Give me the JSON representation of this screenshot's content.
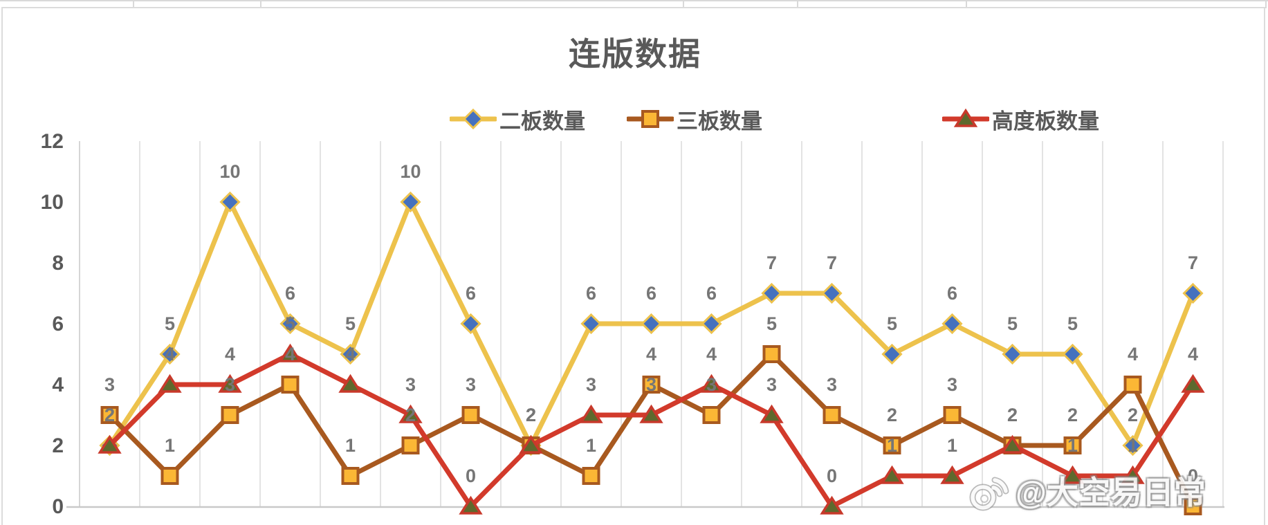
{
  "chart_data": {
    "type": "line",
    "title": "连版数据",
    "ylim": [
      0,
      12
    ],
    "yticks": [
      12,
      10,
      8,
      6,
      4,
      2,
      0
    ],
    "x_points": 19,
    "x_axis_labels_visible": false,
    "grid": "vertical-only",
    "legend_position": "top",
    "data_labels": "above-points",
    "series": [
      {
        "name": "二板数量",
        "marker": "diamond",
        "line_color": "#EDC24C",
        "marker_fill": "#4571BE",
        "values": [
          2,
          5,
          10,
          6,
          5,
          10,
          6,
          2,
          6,
          6,
          6,
          7,
          7,
          5,
          6,
          5,
          5,
          2,
          7
        ]
      },
      {
        "name": "三板数量",
        "marker": "square",
        "line_color": "#A8591F",
        "marker_fill": "#FBB735",
        "values": [
          3,
          1,
          3,
          4,
          1,
          2,
          3,
          2,
          1,
          4,
          3,
          5,
          3,
          2,
          3,
          2,
          2,
          4,
          0
        ]
      },
      {
        "name": "高度板数量",
        "marker": "triangle",
        "line_color": "#D23A2B",
        "marker_fill": "#5E692D",
        "values": [
          2,
          4,
          4,
          5,
          4,
          3,
          0,
          2,
          3,
          3,
          4,
          3,
          0,
          1,
          1,
          2,
          1,
          1,
          4
        ]
      }
    ],
    "label_color": "#767676",
    "tick_color": "#595959",
    "title_color": "#595959",
    "gridline_color": "#E3E3E3",
    "axis_line_color": "#C9C9C9"
  },
  "watermark": {
    "text": "@大空易日常",
    "logo": "weibo-icon"
  }
}
